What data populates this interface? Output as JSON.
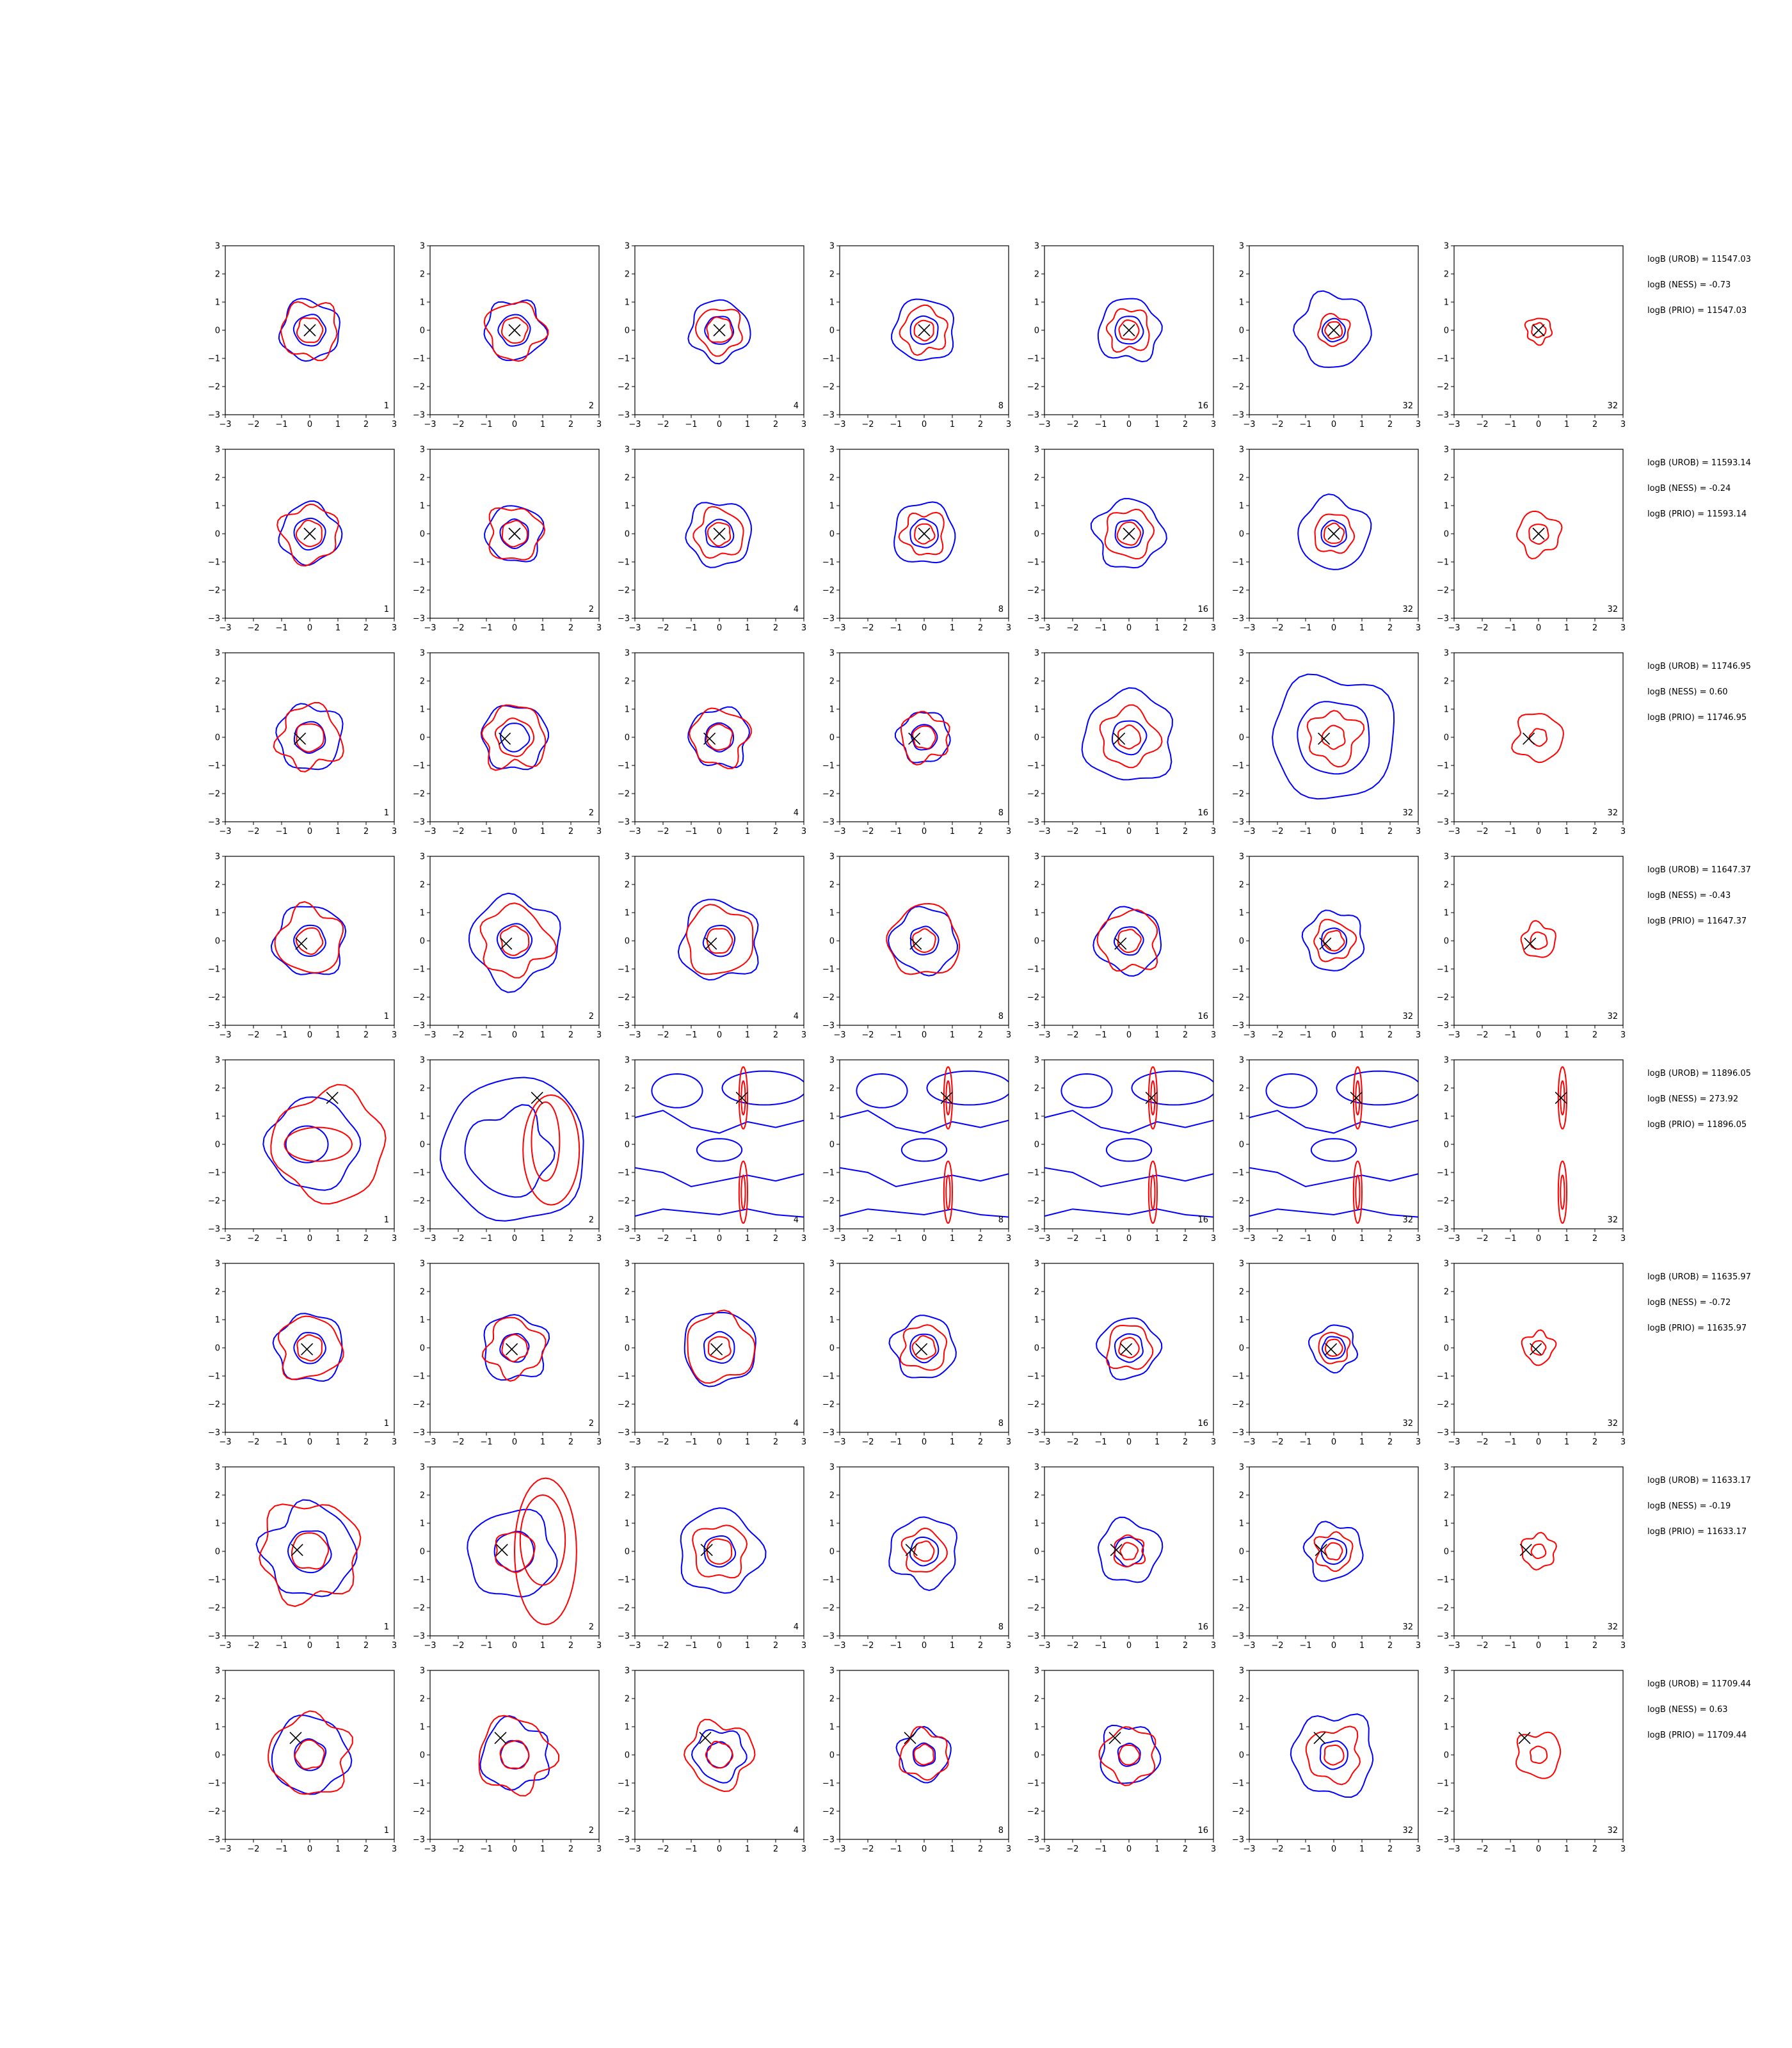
{
  "chart_data": {
    "type": "contour-grid",
    "xlim": [
      -3,
      3
    ],
    "ylim": [
      -3,
      3
    ],
    "ticks": [
      -3,
      -2,
      -1,
      0,
      1,
      2,
      3
    ],
    "tick_labels": [
      "−3",
      "−2",
      "−1",
      "0",
      "1",
      "2",
      "3"
    ],
    "grid": false,
    "colors": {
      "blue_contour": "#0000ff",
      "red_contour": "#ff0000",
      "marker": "#000000"
    },
    "column_labels": [
      "1",
      "2",
      "4",
      "8",
      "16",
      "32",
      "32"
    ],
    "rows": [
      {
        "marker": [
          0,
          0
        ],
        "logb": [
          "logB (UROB) = 11547.03",
          "logB (NESS) = -0.73",
          "logB (PRIO) = 11547.03"
        ],
        "blue_outer": [
          1.05,
          1.05,
          1.05,
          1.1,
          1.1,
          1.3,
          0
        ],
        "blue_inner": [
          0.55,
          0.55,
          0.5,
          0.5,
          0.5,
          0.4,
          0
        ],
        "red_outer": [
          1.0,
          1.0,
          0.8,
          0.8,
          0.75,
          0.55,
          0.45
        ],
        "red_inner": [
          0.45,
          0.45,
          0.45,
          0.35,
          0.35,
          0.3,
          0.25
        ]
      },
      {
        "marker": [
          0,
          0
        ],
        "logb": [
          "logB (UROB) = 11593.14",
          "logB (NESS) = -0.24",
          "logB (PRIO) = 11593.14"
        ],
        "blue_outer": [
          1.05,
          1.0,
          1.15,
          1.1,
          1.2,
          1.25,
          0
        ],
        "blue_inner": [
          0.55,
          0.5,
          0.5,
          0.5,
          0.5,
          0.45,
          0
        ],
        "red_outer": [
          1.0,
          0.95,
          0.85,
          0.75,
          0.85,
          0.7,
          0.75
        ],
        "red_inner": [
          0.45,
          0.45,
          0.4,
          0.35,
          0.4,
          0.35,
          0.35
        ]
      },
      {
        "marker": [
          -0.35,
          -0.05
        ],
        "logb": [
          "logB (UROB) = 11746.95",
          "logB (NESS) = 0.60",
          "logB (PRIO) = 11746.95"
        ],
        "blue_outer": [
          1.15,
          1.15,
          1.05,
          0.9,
          1.6,
          2.2,
          0
        ],
        "blue_inner": [
          0.55,
          0.5,
          0.5,
          0.45,
          0.6,
          1.3,
          0
        ],
        "red_outer": [
          1.1,
          1.1,
          1.0,
          0.85,
          1.0,
          0.9,
          0.85
        ],
        "red_inner": [
          0.5,
          0.65,
          0.45,
          0.4,
          0.4,
          0.4,
          0.3
        ]
      },
      {
        "marker": [
          -0.3,
          -0.1
        ],
        "logb": [
          "logB (UROB) = 11647.37",
          "logB (NESS) = -0.43",
          "logB (PRIO) = 11647.37"
        ],
        "blue_outer": [
          1.25,
          1.55,
          1.4,
          1.15,
          1.15,
          1.05,
          0
        ],
        "blue_inner": [
          0.55,
          0.6,
          0.55,
          0.5,
          0.5,
          0.45,
          0
        ],
        "red_outer": [
          1.15,
          1.2,
          1.2,
          1.25,
          1.05,
          0.7,
          0.6
        ],
        "red_inner": [
          0.45,
          0.5,
          0.45,
          0.4,
          0.4,
          0.35,
          0.3
        ]
      },
      {
        "marker": [
          0.8,
          1.65
        ],
        "logb": [
          "logB (UROB) = 11896.05",
          "logB (NESS) = 273.92",
          "logB (PRIO) = 11896.05"
        ],
        "blue_outer": [
          0,
          0,
          0,
          0,
          0,
          0,
          0
        ],
        "blue_inner": [
          0,
          0,
          0,
          0,
          0,
          0,
          0
        ],
        "red_outer": [
          0,
          0,
          0,
          0,
          0,
          0,
          0
        ],
        "red_inner": [
          0,
          0,
          0,
          0,
          0,
          0,
          0
        ]
      },
      {
        "marker": [
          -0.1,
          -0.05
        ],
        "logb": [
          "logB (UROB) = 11635.97",
          "logB (NESS) = -0.72",
          "logB (PRIO) = 11635.97"
        ],
        "blue_outer": [
          1.2,
          1.15,
          1.3,
          1.1,
          1.05,
          0.8,
          0
        ],
        "blue_inner": [
          0.55,
          0.5,
          0.55,
          0.5,
          0.5,
          0.4,
          0
        ],
        "red_outer": [
          1.1,
          1.0,
          1.2,
          0.8,
          0.8,
          0.55,
          0.55
        ],
        "red_inner": [
          0.45,
          0.45,
          0.4,
          0.4,
          0.35,
          0.3,
          0.25
        ]
      },
      {
        "marker": [
          -0.45,
          0.05
        ],
        "logb": [
          "logB (UROB) = 11633.17",
          "logB (NESS) = -0.19",
          "logB (PRIO) = 11633.17"
        ],
        "blue_outer": [
          1.6,
          0,
          1.45,
          1.2,
          1.1,
          1.0,
          0
        ],
        "blue_inner": [
          0.75,
          0.7,
          0.55,
          0.5,
          0.5,
          0.45,
          0
        ],
        "red_outer": [
          1.75,
          0,
          0.95,
          0.75,
          0.55,
          0.65,
          0.6
        ],
        "red_inner": [
          0.65,
          0.7,
          0.45,
          0.35,
          0.3,
          0.3,
          0.25
        ]
      },
      {
        "marker": [
          -0.5,
          0.6
        ],
        "logb": [
          "logB (UROB) = 11709.44",
          "logB (NESS) = 0.63",
          "logB (PRIO) = 11709.44"
        ],
        "blue_outer": [
          1.35,
          1.2,
          0.9,
          0.9,
          1.05,
          1.45,
          0
        ],
        "blue_inner": [
          0.55,
          0.5,
          0.45,
          0.4,
          0.4,
          0.5,
          0
        ],
        "red_outer": [
          1.4,
          1.3,
          1.15,
          0.85,
          0.95,
          0.95,
          0.8
        ],
        "red_inner": [
          0.5,
          0.5,
          0.45,
          0.35,
          0.35,
          0.35,
          0.3
        ]
      }
    ]
  }
}
